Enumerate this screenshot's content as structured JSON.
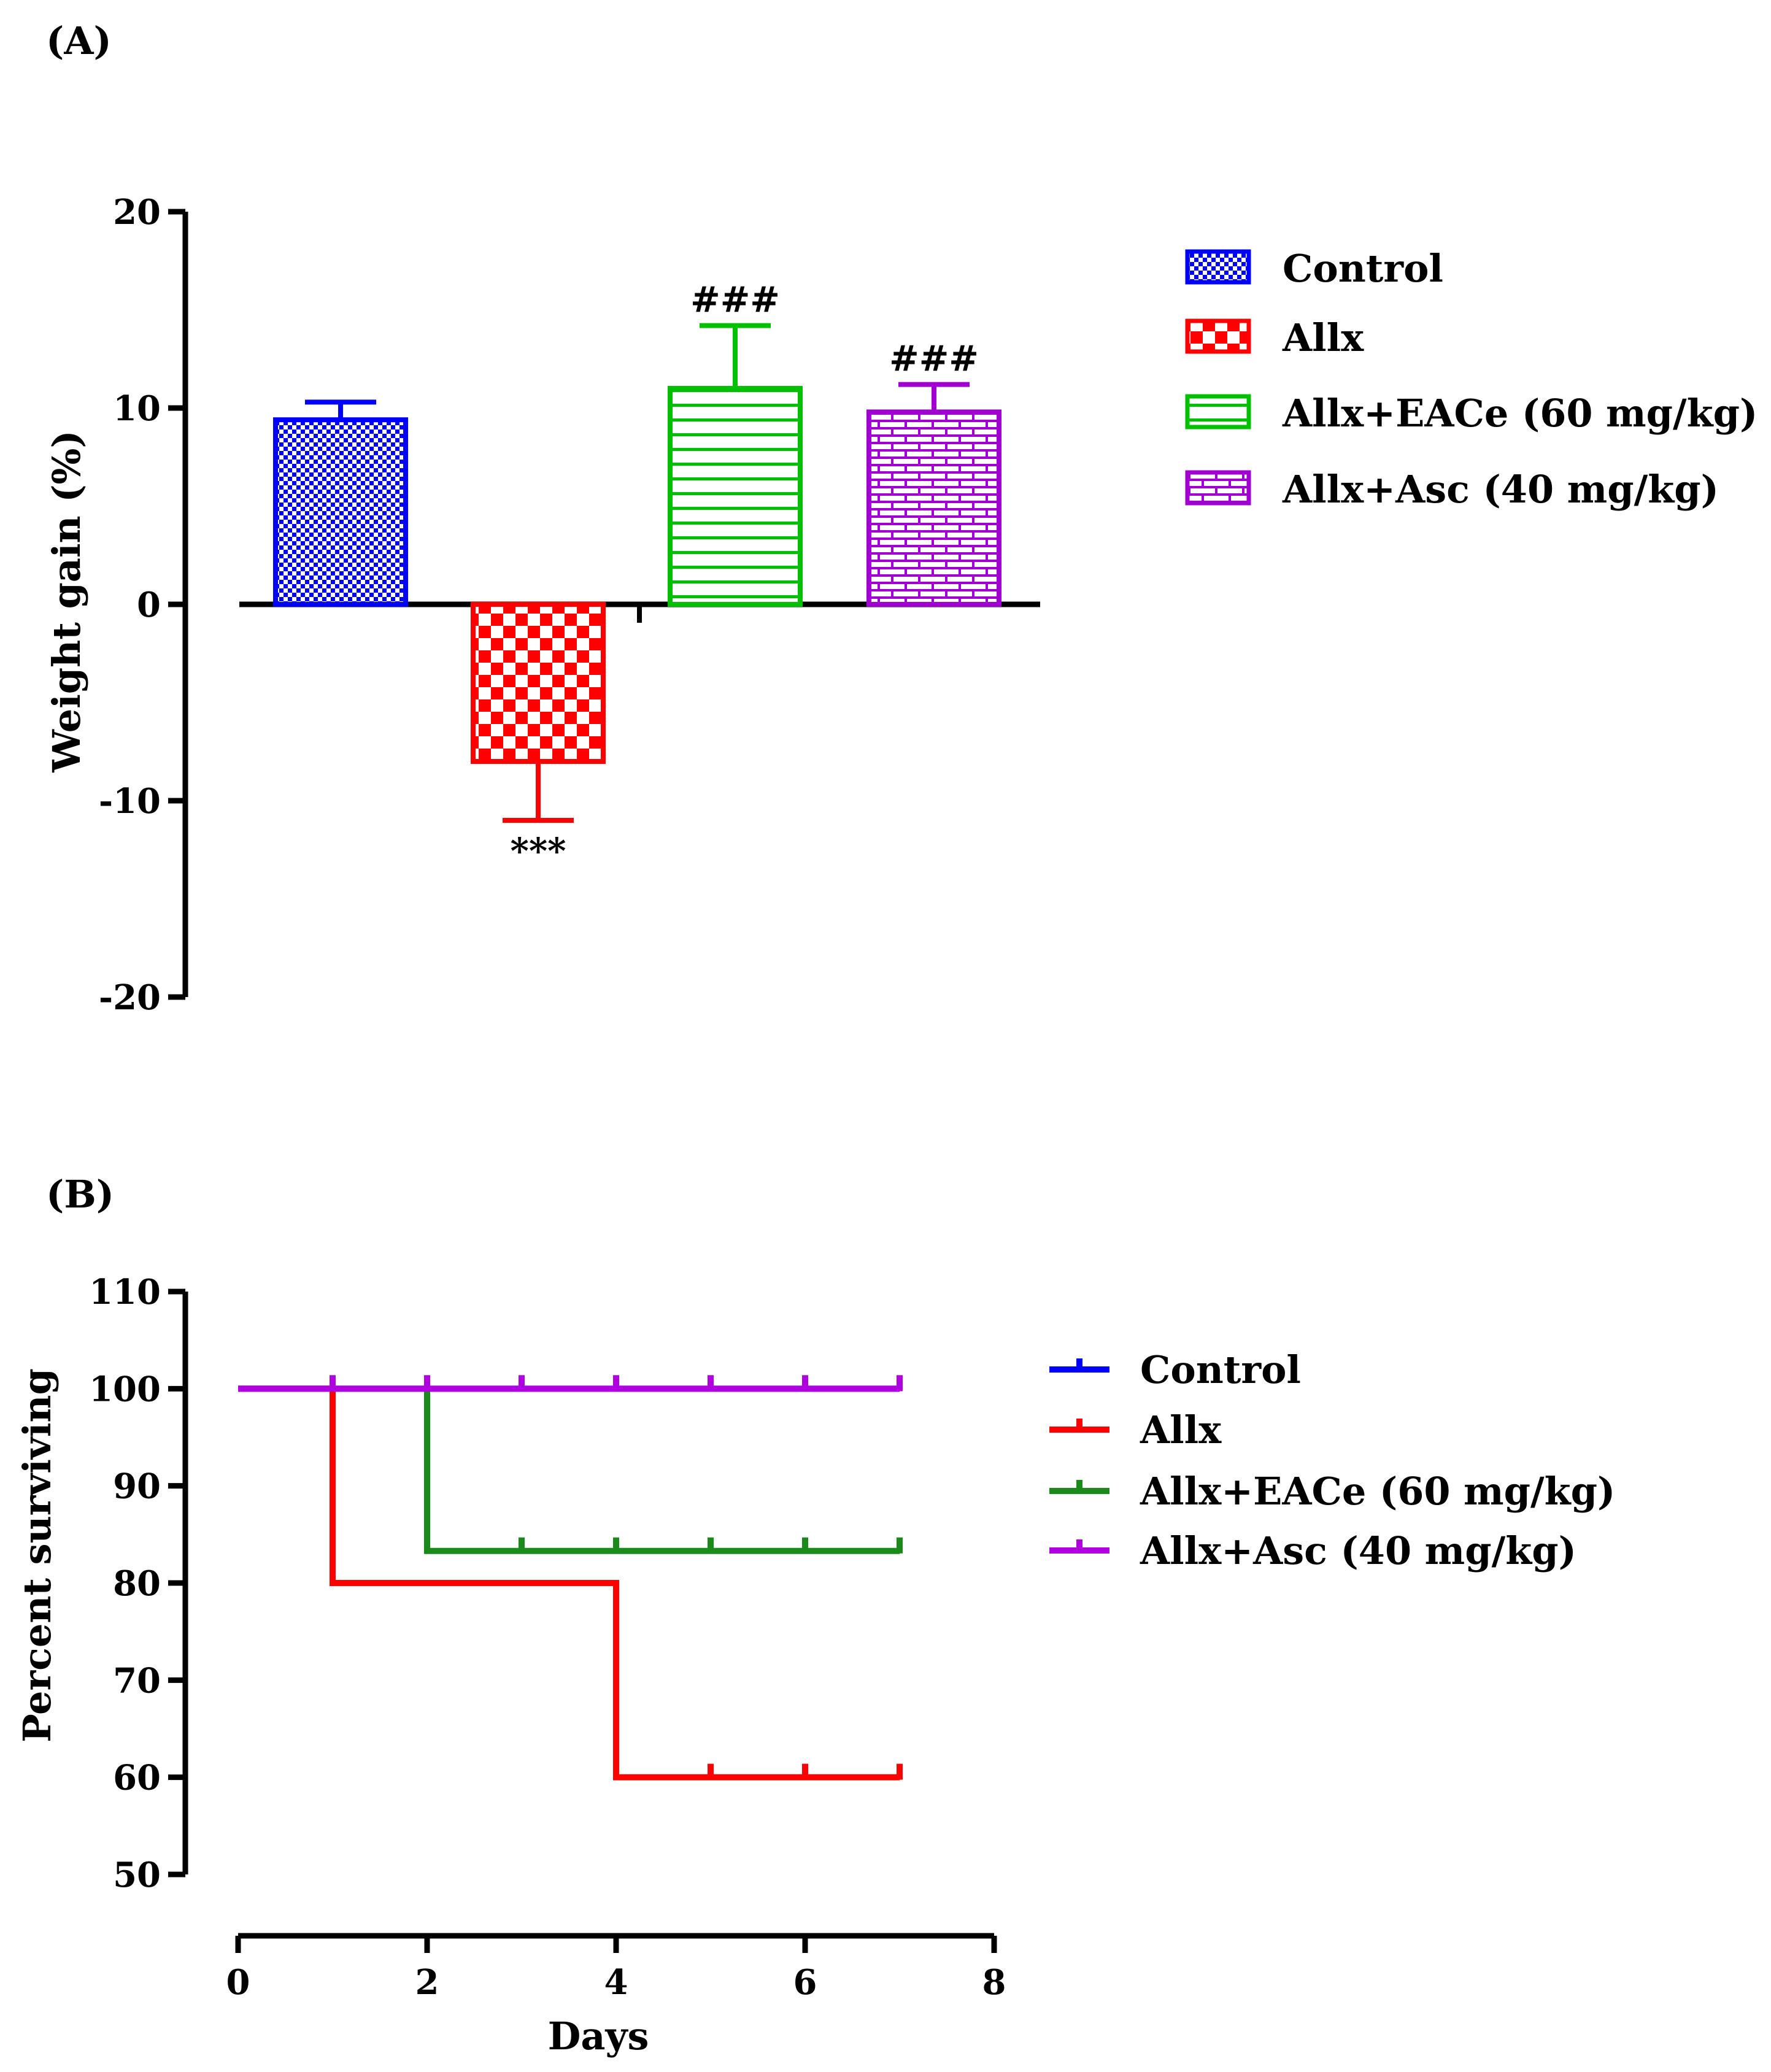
{
  "chart_data": [
    {
      "type": "bar",
      "panel_label": "(A)",
      "title": "",
      "xlabel": "",
      "ylabel": "Weight gain  (%)",
      "ylim": [
        -20,
        20
      ],
      "yticks": [
        -20,
        -10,
        0,
        10,
        20
      ],
      "grid": false,
      "legend_position": "right",
      "categories": [
        "Control",
        "Allx",
        "Allx+EACe (60 mg/kg)",
        "Allx+Asc (40 mg/kg)"
      ],
      "values": [
        9.4,
        -8.0,
        11.0,
        9.8
      ],
      "error": [
        0.9,
        3.0,
        3.2,
        1.4
      ],
      "annotations": [
        "",
        "***",
        "###",
        "###"
      ],
      "colors": [
        "#0000ff",
        "#ff0000",
        "#00c000",
        "#a000d0"
      ],
      "patterns": [
        "dense-checker",
        "checker",
        "horizontal-lines",
        "brick"
      ]
    },
    {
      "type": "line",
      "subtype": "step",
      "panel_label": "(B)",
      "title": "",
      "xlabel": "Days",
      "ylabel": "Percent surviving",
      "xlim": [
        0,
        8
      ],
      "ylim": [
        50,
        110
      ],
      "xticks": [
        0,
        2,
        4,
        6,
        8
      ],
      "yticks": [
        50,
        60,
        70,
        80,
        90,
        100,
        110
      ],
      "grid": false,
      "legend_position": "right",
      "series": [
        {
          "name": "Control",
          "color": "#0000ff",
          "x": [
            0,
            7
          ],
          "y": [
            100,
            100
          ],
          "censor_x": [
            1,
            2,
            3,
            4,
            5,
            6,
            7
          ]
        },
        {
          "name": "Allx",
          "color": "#ff0000",
          "x": [
            0,
            1,
            1,
            4,
            4,
            7
          ],
          "y": [
            100,
            100,
            80,
            80,
            60,
            60
          ],
          "censor_x": [
            5,
            6,
            7
          ]
        },
        {
          "name": "Allx+EACe (60 mg/kg)",
          "color": "#1a8a1a",
          "x": [
            0,
            2,
            2,
            7
          ],
          "y": [
            100,
            100,
            83.3,
            83.3
          ],
          "censor_x": [
            3,
            4,
            5,
            6,
            7
          ]
        },
        {
          "name": "Allx+Asc (40 mg/kg)",
          "color": "#b000e0",
          "x": [
            0,
            7
          ],
          "y": [
            100,
            100
          ],
          "censor_x": [
            1,
            2,
            3,
            4,
            5,
            6,
            7
          ]
        }
      ]
    }
  ]
}
